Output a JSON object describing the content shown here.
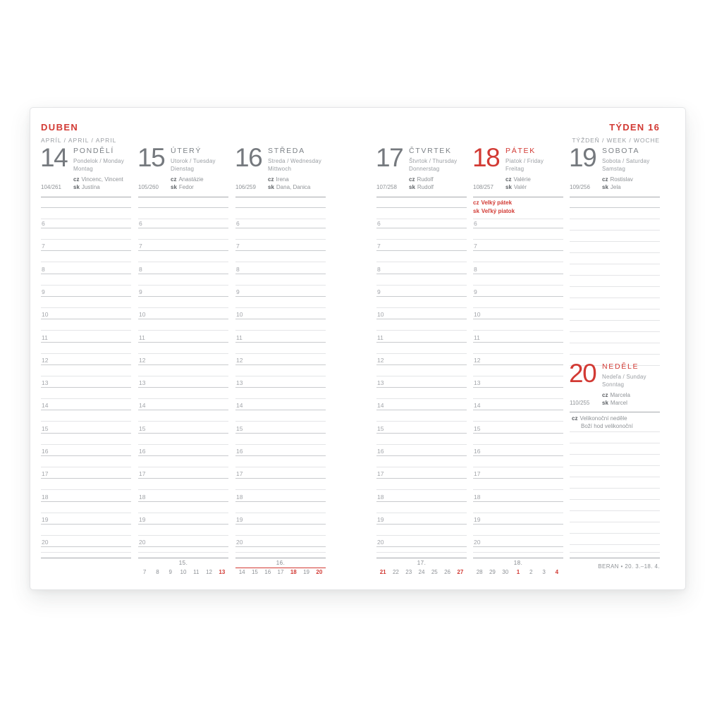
{
  "header": {
    "month": "DUBEN",
    "month_sub": "APRÍL / APRIL / APRIL",
    "week": "TÝDEN 16",
    "week_sub": "TÝŽDEŇ / WEEK / WOCHE"
  },
  "prefix_labels": {
    "cz": "cz",
    "sk": "sk"
  },
  "days": [
    {
      "number": "14",
      "name": "PONDĚLÍ",
      "line1": "Pondelok / Monday",
      "line2": "Montag",
      "day_of_year": "104/261",
      "cz": "Vincenc, Vincent",
      "sk": "Justína",
      "red": false
    },
    {
      "number": "15",
      "name": "ÚTERÝ",
      "line1": "Utorok / Tuesday",
      "line2": "Dienstag",
      "day_of_year": "105/260",
      "cz": "Anastázie",
      "sk": "Fedor",
      "red": false
    },
    {
      "number": "16",
      "name": "STŘEDA",
      "line1": "Streda / Wednesday",
      "line2": "Mittwoch",
      "day_of_year": "106/259",
      "cz": "Irena",
      "sk": "Dana, Danica",
      "red": false
    },
    {
      "number": "17",
      "name": "ČTVRTEK",
      "line1": "Štvrtok / Thursday",
      "line2": "Donnerstag",
      "day_of_year": "107/258",
      "cz": "Rudolf",
      "sk": "Rudolf",
      "red": false
    },
    {
      "number": "18",
      "name": "PÁTEK",
      "line1": "Piatok / Friday",
      "line2": "Freitag",
      "day_of_year": "108/257",
      "cz": "Valérie",
      "sk": "Valér",
      "red": true,
      "holiday": {
        "cz": "Velký pátek",
        "sk": "Veľký piatok",
        "red": true
      }
    },
    {
      "number": "19",
      "name": "SOBOTA",
      "line1": "Sobota / Saturday",
      "line2": "Samstag",
      "day_of_year": "109/256",
      "cz": "Rostislav",
      "sk": "Jela",
      "red": false
    },
    {
      "number": "20",
      "name": "NEDĚLE",
      "line1": "Nedeľa / Sunday",
      "line2": "Sonntag",
      "day_of_year": "110/255",
      "cz": "Marcela",
      "sk": "Marcel",
      "red": true,
      "holiday": {
        "cz": "Velikonoční neděle",
        "extra": "Boží hod velikonoční",
        "red": false
      }
    }
  ],
  "hours": [
    "6",
    "7",
    "8",
    "9",
    "10",
    "11",
    "12",
    "13",
    "14",
    "15",
    "16",
    "17",
    "18",
    "19",
    "20"
  ],
  "mini_calendars": [
    {
      "week": "15.",
      "days": [
        "7",
        "8",
        "9",
        "10",
        "11",
        "12",
        "13"
      ],
      "red_days": [
        "13"
      ],
      "current": false
    },
    {
      "week": "16.",
      "days": [
        "14",
        "15",
        "16",
        "17",
        "18",
        "19",
        "20"
      ],
      "red_days": [
        "18",
        "20"
      ],
      "current": true
    },
    {
      "week": "17.",
      "days": [
        "21",
        "22",
        "23",
        "24",
        "25",
        "26",
        "27"
      ],
      "red_days": [
        "21",
        "27"
      ],
      "current": false
    },
    {
      "week": "18.",
      "days": [
        "28",
        "29",
        "30",
        "1",
        "2",
        "3",
        "4"
      ],
      "red_days": [
        "1",
        "4"
      ],
      "current": false
    }
  ],
  "footer": {
    "zodiac": "BERAN • 20. 3.–18. 4."
  },
  "colors": {
    "accent_red": "#d23a34",
    "text_dark": "#5d6165",
    "text_gray": "#8f9397",
    "line_light": "#e4e5e7",
    "line_medium": "#c9cbce",
    "line_dark": "#a6a9ad"
  }
}
